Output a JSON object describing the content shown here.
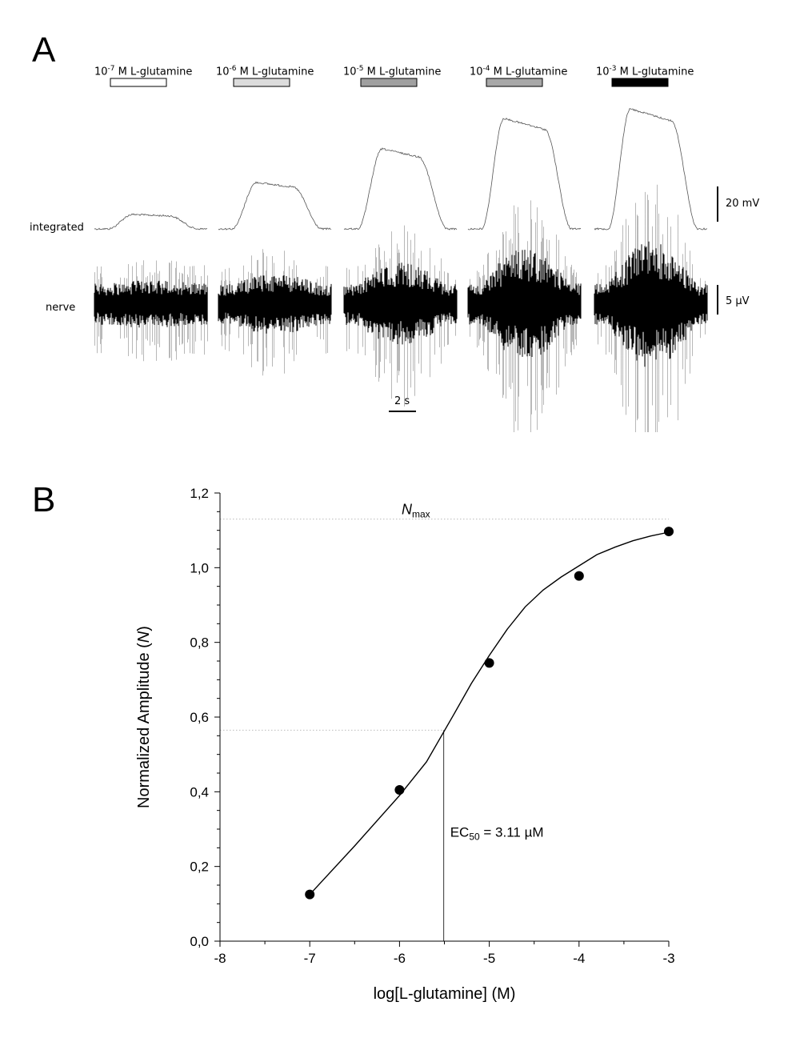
{
  "panel_a": {
    "letter": "A",
    "stimuli": [
      {
        "base": "10",
        "exp": "-7",
        "text": " M L-glutamine",
        "fill": "#ffffff"
      },
      {
        "base": "10",
        "exp": "-6",
        "text": " M L-glutamine",
        "fill": "#dcdcdc"
      },
      {
        "base": "10",
        "exp": "-5",
        "text": " M L-glutamine",
        "fill": "#a0a0a0"
      },
      {
        "base": "10",
        "exp": "-4",
        "text": " M L-glutamine",
        "fill": "#a8a8a8"
      },
      {
        "base": "10",
        "exp": "-3",
        "text": " M L-glutamine",
        "fill": "#000000"
      }
    ],
    "integrated_label": "integrated",
    "nerve_label": "nerve",
    "scale_integrated": "20 mV",
    "scale_nerve": "5 µV",
    "scale_time": "2 s"
  },
  "chart_data": {
    "type": "scatter",
    "panel_letter": "B",
    "xlabel": "log[L-glutamine] (M)",
    "ylabel": "Normalized Amplitude (N)",
    "xlim": [
      -8,
      -3
    ],
    "ylim": [
      0,
      1.2
    ],
    "x_ticks": [
      "-8",
      "-7",
      "-6",
      "-5",
      "-4",
      "-3"
    ],
    "y_ticks": [
      "0,0",
      "0,2",
      "0,4",
      "0,6",
      "0,8",
      "1,0",
      "1,2"
    ],
    "points": [
      {
        "x": -7,
        "y": 0.125
      },
      {
        "x": -6,
        "y": 0.405
      },
      {
        "x": -5,
        "y": 0.745
      },
      {
        "x": -4,
        "y": 0.978
      },
      {
        "x": -3,
        "y": 1.097
      }
    ],
    "fit_curve": [
      {
        "x": -7,
        "y": 0.125
      },
      {
        "x": -6.5,
        "y": 0.255
      },
      {
        "x": -6,
        "y": 0.39
      },
      {
        "x": -5.7,
        "y": 0.48
      },
      {
        "x": -5.4,
        "y": 0.605
      },
      {
        "x": -5.2,
        "y": 0.69
      },
      {
        "x": -5,
        "y": 0.765
      },
      {
        "x": -4.8,
        "y": 0.835
      },
      {
        "x": -4.6,
        "y": 0.895
      },
      {
        "x": -4.4,
        "y": 0.94
      },
      {
        "x": -4.2,
        "y": 0.975
      },
      {
        "x": -4,
        "y": 1.005
      },
      {
        "x": -3.8,
        "y": 1.035
      },
      {
        "x": -3.6,
        "y": 1.055
      },
      {
        "x": -3.4,
        "y": 1.072
      },
      {
        "x": -3.2,
        "y": 1.085
      },
      {
        "x": -3,
        "y": 1.095
      }
    ],
    "nmax": 1.13,
    "nmax_label_main": "N",
    "nmax_label_sub": "max",
    "ec50_x": -5.507,
    "ec50_y": 0.565,
    "ec50_label_main": "EC",
    "ec50_label_sub": "50",
    "ec50_label_rest": " = 3.11 µM"
  }
}
